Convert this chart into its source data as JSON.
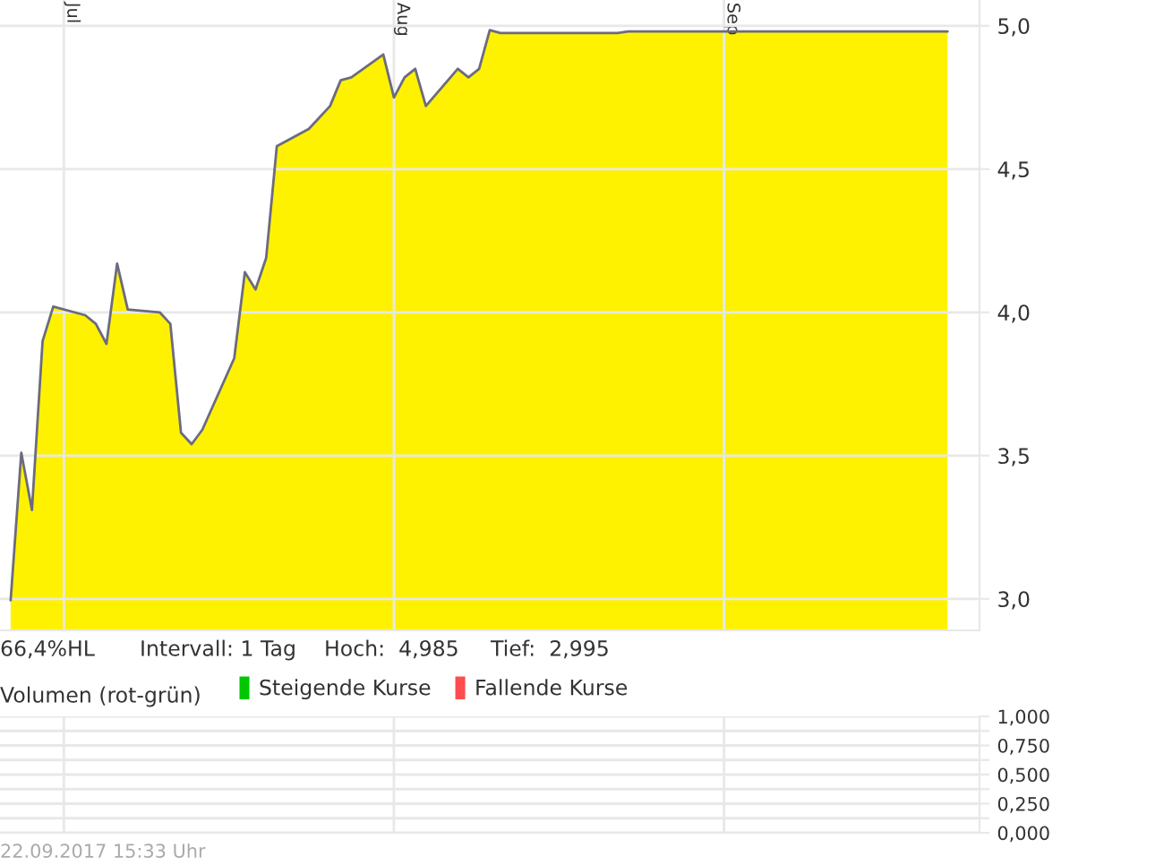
{
  "chart_data": [
    {
      "type": "area",
      "x": [
        "2017-06-26",
        "2017-06-27",
        "2017-06-28",
        "2017-06-29",
        "2017-06-30",
        "2017-07-03",
        "2017-07-04",
        "2017-07-05",
        "2017-07-06",
        "2017-07-07",
        "2017-07-10",
        "2017-07-11",
        "2017-07-12",
        "2017-07-13",
        "2017-07-14",
        "2017-07-17",
        "2017-07-18",
        "2017-07-19",
        "2017-07-20",
        "2017-07-21",
        "2017-07-24",
        "2017-07-25",
        "2017-07-26",
        "2017-07-27",
        "2017-07-28",
        "2017-07-31",
        "2017-08-01",
        "2017-08-02",
        "2017-08-03",
        "2017-08-04",
        "2017-08-07",
        "2017-08-08",
        "2017-08-09",
        "2017-08-10",
        "2017-08-11",
        "2017-08-14",
        "2017-08-22",
        "2017-08-23",
        "2017-09-22"
      ],
      "series": [
        {
          "color": "#fff200",
          "values": [
            2.995,
            3.51,
            3.31,
            3.9,
            4.02,
            3.99,
            3.96,
            3.89,
            4.17,
            4.01,
            4.0,
            3.96,
            3.58,
            3.54,
            3.59,
            3.84,
            4.14,
            4.08,
            4.19,
            4.58,
            4.64,
            4.68,
            4.72,
            4.81,
            4.82,
            4.9,
            4.75,
            4.82,
            4.85,
            4.72,
            4.85,
            4.82,
            4.85,
            4.985,
            4.975,
            4.975,
            4.975,
            4.98,
            4.98
          ]
        }
      ],
      "xlim": [
        "2017-06-25",
        "2017-09-25"
      ],
      "xticks": [
        {
          "value": "2017-07-01",
          "label": "Jul"
        },
        {
          "value": "2017-08-01",
          "label": "Aug"
        },
        {
          "value": "2017-09-01",
          "label": "Sep"
        }
      ],
      "ylim": [
        2.89,
        5.09
      ],
      "yticks": [
        {
          "value": 3.0,
          "label": "3,0"
        },
        {
          "value": 3.5,
          "label": "3,5"
        },
        {
          "value": 4.0,
          "label": "4,0"
        },
        {
          "value": 4.5,
          "label": "4,5"
        },
        {
          "value": 5.0,
          "label": "5,0"
        }
      ],
      "grid": true,
      "annotations": [
        "66,4%HL",
        "Intervall: 1 Tag",
        "Hoch:  4,985",
        "Tief:  2,995"
      ]
    },
    {
      "type": "bar",
      "title": "Volumen (rot-grün)",
      "series": [
        {
          "name": "Steigende Kurse",
          "color": "#00c800"
        },
        {
          "name": "Fallende Kurse",
          "color": "#ff4d4d"
        }
      ],
      "ylim": [
        0,
        1
      ],
      "yticks": [
        {
          "value": 0,
          "label": "0,000"
        },
        {
          "value": 0.125,
          "label": null
        },
        {
          "value": 0.25,
          "label": "0,250"
        },
        {
          "value": 0.375,
          "label": null
        },
        {
          "value": 0.5,
          "label": "0,500"
        },
        {
          "value": 0.625,
          "label": null
        },
        {
          "value": 0.75,
          "label": "0,750"
        },
        {
          "value": 0.875,
          "label": null
        },
        {
          "value": 1,
          "label": "1,000"
        }
      ],
      "tick_labels": "y",
      "grid": true,
      "legend": "top",
      "annotations": [
        "22.09.2017 15:33 Uhr"
      ]
    }
  ]
}
